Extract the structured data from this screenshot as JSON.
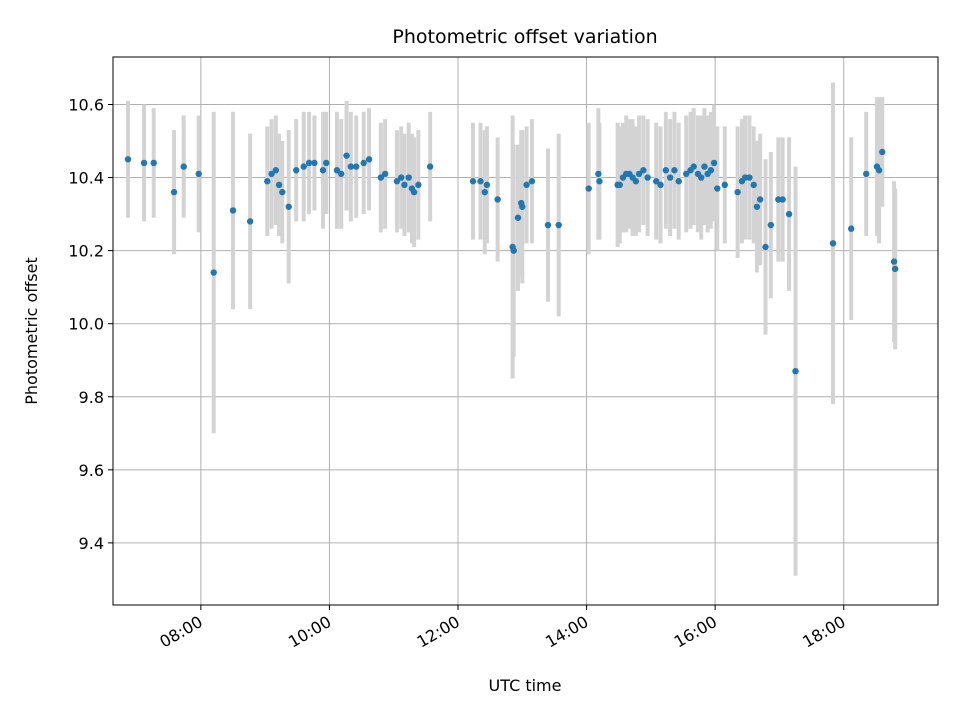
{
  "chart_data": {
    "type": "scatter",
    "title": "Photometric offset variation",
    "xlabel": "UTC time",
    "ylabel": "Photometric offset",
    "xlim": [
      "06:38",
      "19:28"
    ],
    "ylim": [
      9.23,
      10.73
    ],
    "x_ticks": [
      "08:00",
      "10:00",
      "12:00",
      "14:00",
      "16:00",
      "18:00"
    ],
    "y_ticks": [
      9.4,
      9.6,
      9.8,
      10.0,
      10.2,
      10.4,
      10.6
    ],
    "y_tick_labels": [
      "9.4",
      "9.6",
      "9.8",
      "10.0",
      "10.2",
      "10.4",
      "10.6"
    ],
    "grid": true,
    "colors": {
      "point": "#1f77b4",
      "errorbar": "#d3d3d3",
      "grid": "#b0b0b0"
    },
    "series": [
      {
        "points": [
          {
            "x": "06:52",
            "y": 10.45,
            "err": 0.16
          },
          {
            "x": "07:07",
            "y": 10.44,
            "err": 0.16
          },
          {
            "x": "07:16",
            "y": 10.44,
            "err": 0.15
          },
          {
            "x": "07:35",
            "y": 10.36,
            "err": 0.17
          },
          {
            "x": "07:44",
            "y": 10.43,
            "err": 0.14
          },
          {
            "x": "07:58",
            "y": 10.41,
            "err": 0.16
          },
          {
            "x": "08:12",
            "y": 10.14,
            "err": 0.44
          },
          {
            "x": "08:30",
            "y": 10.31,
            "err": 0.27
          },
          {
            "x": "08:46",
            "y": 10.28,
            "err": 0.24
          },
          {
            "x": "09:02",
            "y": 10.39,
            "err": 0.15
          },
          {
            "x": "09:06",
            "y": 10.41,
            "err": 0.15
          },
          {
            "x": "09:10",
            "y": 10.42,
            "err": 0.15
          },
          {
            "x": "09:13",
            "y": 10.38,
            "err": 0.14
          },
          {
            "x": "09:16",
            "y": 10.36,
            "err": 0.14
          },
          {
            "x": "09:22",
            "y": 10.32,
            "err": 0.21
          },
          {
            "x": "09:29",
            "y": 10.42,
            "err": 0.14
          },
          {
            "x": "09:36",
            "y": 10.43,
            "err": 0.15
          },
          {
            "x": "09:41",
            "y": 10.44,
            "err": 0.14
          },
          {
            "x": "09:46",
            "y": 10.44,
            "err": 0.13
          },
          {
            "x": "09:54",
            "y": 10.42,
            "err": 0.16
          },
          {
            "x": "09:57",
            "y": 10.44,
            "err": 0.14
          },
          {
            "x": "10:07",
            "y": 10.42,
            "err": 0.16
          },
          {
            "x": "10:11",
            "y": 10.41,
            "err": 0.15
          },
          {
            "x": "10:16",
            "y": 10.46,
            "err": 0.15
          },
          {
            "x": "10:20",
            "y": 10.43,
            "err": 0.15
          },
          {
            "x": "10:25",
            "y": 10.43,
            "err": 0.14
          },
          {
            "x": "10:32",
            "y": 10.44,
            "err": 0.14
          },
          {
            "x": "10:37",
            "y": 10.45,
            "err": 0.14
          },
          {
            "x": "10:48",
            "y": 10.4,
            "err": 0.15
          },
          {
            "x": "10:52",
            "y": 10.41,
            "err": 0.15
          },
          {
            "x": "11:03",
            "y": 10.39,
            "err": 0.14
          },
          {
            "x": "11:07",
            "y": 10.4,
            "err": 0.14
          },
          {
            "x": "11:10",
            "y": 10.38,
            "err": 0.14
          },
          {
            "x": "11:14",
            "y": 10.4,
            "err": 0.15
          },
          {
            "x": "11:17",
            "y": 10.37,
            "err": 0.15
          },
          {
            "x": "11:19",
            "y": 10.36,
            "err": 0.15
          },
          {
            "x": "11:23",
            "y": 10.38,
            "err": 0.15
          },
          {
            "x": "11:34",
            "y": 10.43,
            "err": 0.15
          },
          {
            "x": "12:14",
            "y": 10.39,
            "err": 0.16
          },
          {
            "x": "12:21",
            "y": 10.39,
            "err": 0.16
          },
          {
            "x": "12:25",
            "y": 10.36,
            "err": 0.17
          },
          {
            "x": "12:27",
            "y": 10.38,
            "err": 0.16
          },
          {
            "x": "12:37",
            "y": 10.34,
            "err": 0.17
          },
          {
            "x": "12:51",
            "y": 10.21,
            "err": 0.36
          },
          {
            "x": "12:52",
            "y": 10.2,
            "err": 0.29
          },
          {
            "x": "12:56",
            "y": 10.29,
            "err": 0.2
          },
          {
            "x": "12:59",
            "y": 10.33,
            "err": 0.2
          },
          {
            "x": "13:00",
            "y": 10.32,
            "err": 0.21
          },
          {
            "x": "13:04",
            "y": 10.38,
            "err": 0.16
          },
          {
            "x": "13:09",
            "y": 10.39,
            "err": 0.17
          },
          {
            "x": "13:24",
            "y": 10.27,
            "err": 0.21
          },
          {
            "x": "13:34",
            "y": 10.27,
            "err": 0.25
          },
          {
            "x": "14:02",
            "y": 10.37,
            "err": 0.18
          },
          {
            "x": "14:11",
            "y": 10.41,
            "err": 0.18
          },
          {
            "x": "14:12",
            "y": 10.39,
            "err": 0.16
          },
          {
            "x": "14:29",
            "y": 10.38,
            "err": 0.17
          },
          {
            "x": "14:31",
            "y": 10.38,
            "err": 0.16
          },
          {
            "x": "14:34",
            "y": 10.4,
            "err": 0.15
          },
          {
            "x": "14:37",
            "y": 10.41,
            "err": 0.16
          },
          {
            "x": "14:40",
            "y": 10.41,
            "err": 0.15
          },
          {
            "x": "14:43",
            "y": 10.4,
            "err": 0.16
          },
          {
            "x": "14:46",
            "y": 10.39,
            "err": 0.15
          },
          {
            "x": "14:49",
            "y": 10.41,
            "err": 0.16
          },
          {
            "x": "14:53",
            "y": 10.42,
            "err": 0.15
          },
          {
            "x": "14:57",
            "y": 10.4,
            "err": 0.16
          },
          {
            "x": "15:05",
            "y": 10.39,
            "err": 0.16
          },
          {
            "x": "15:09",
            "y": 10.38,
            "err": 0.16
          },
          {
            "x": "15:14",
            "y": 10.42,
            "err": 0.16
          },
          {
            "x": "15:18",
            "y": 10.4,
            "err": 0.16
          },
          {
            "x": "15:22",
            "y": 10.42,
            "err": 0.16
          },
          {
            "x": "15:26",
            "y": 10.39,
            "err": 0.16
          },
          {
            "x": "15:33",
            "y": 10.41,
            "err": 0.16
          },
          {
            "x": "15:37",
            "y": 10.42,
            "err": 0.16
          },
          {
            "x": "15:40",
            "y": 10.43,
            "err": 0.16
          },
          {
            "x": "15:44",
            "y": 10.41,
            "err": 0.16
          },
          {
            "x": "15:47",
            "y": 10.4,
            "err": 0.17
          },
          {
            "x": "15:50",
            "y": 10.43,
            "err": 0.16
          },
          {
            "x": "15:53",
            "y": 10.41,
            "err": 0.16
          },
          {
            "x": "15:56",
            "y": 10.42,
            "err": 0.16
          },
          {
            "x": "15:59",
            "y": 10.44,
            "err": 0.16
          },
          {
            "x": "16:02",
            "y": 10.37,
            "err": 0.17
          },
          {
            "x": "16:09",
            "y": 10.38,
            "err": 0.16
          },
          {
            "x": "16:21",
            "y": 10.36,
            "err": 0.18
          },
          {
            "x": "16:25",
            "y": 10.39,
            "err": 0.17
          },
          {
            "x": "16:28",
            "y": 10.4,
            "err": 0.17
          },
          {
            "x": "16:32",
            "y": 10.4,
            "err": 0.17
          },
          {
            "x": "16:36",
            "y": 10.38,
            "err": 0.16
          },
          {
            "x": "16:39",
            "y": 10.32,
            "err": 0.18
          },
          {
            "x": "16:42",
            "y": 10.34,
            "err": 0.18
          },
          {
            "x": "16:47",
            "y": 10.21,
            "err": 0.24
          },
          {
            "x": "16:52",
            "y": 10.27,
            "err": 0.2
          },
          {
            "x": "16:59",
            "y": 10.34,
            "err": 0.17
          },
          {
            "x": "17:03",
            "y": 10.34,
            "err": 0.17
          },
          {
            "x": "17:09",
            "y": 10.3,
            "err": 0.21
          },
          {
            "x": "17:15",
            "y": 9.87,
            "err": 0.56
          },
          {
            "x": "17:50",
            "y": 10.22,
            "err": 0.44
          },
          {
            "x": "18:07",
            "y": 10.26,
            "err": 0.25
          },
          {
            "x": "18:21",
            "y": 10.41,
            "err": 0.17
          },
          {
            "x": "18:31",
            "y": 10.43,
            "err": 0.19
          },
          {
            "x": "18:33",
            "y": 10.42,
            "err": 0.2
          },
          {
            "x": "18:36",
            "y": 10.47,
            "err": 0.15
          },
          {
            "x": "18:47",
            "y": 10.17,
            "err": 0.22
          },
          {
            "x": "18:48",
            "y": 10.15,
            "err": 0.22
          }
        ]
      }
    ]
  }
}
